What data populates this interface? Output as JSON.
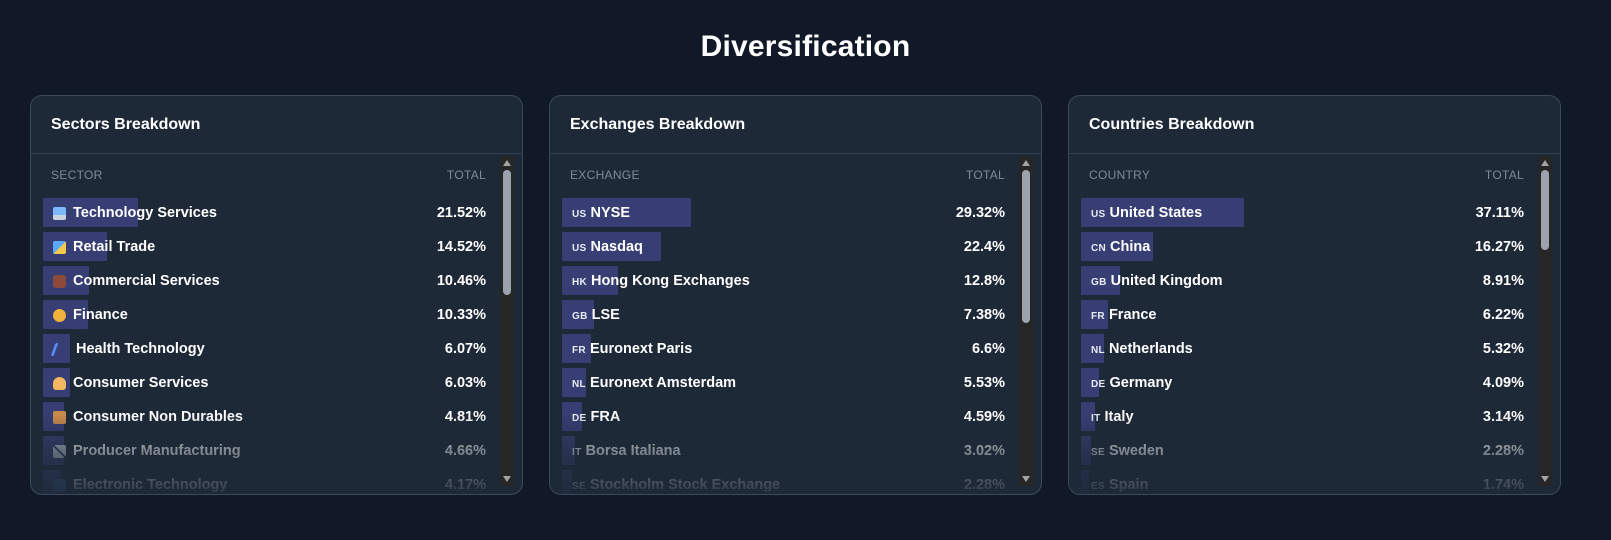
{
  "title": "Diversification",
  "colors": {
    "bar": "#363e73",
    "background": "#111827",
    "panel": "#1e2937"
  },
  "panels": [
    {
      "title": "Sectors Breakdown",
      "col_label": "SECTOR",
      "col_total": "TOTAL",
      "scroll_thumb": {
        "start": 0.0,
        "length": 0.41
      },
      "rows": [
        {
          "label": "Technology Services",
          "value": "21.52%",
          "pct": 21.52,
          "icon": "computer-icon"
        },
        {
          "label": "Retail Trade",
          "value": "14.52%",
          "pct": 14.52,
          "icon": "shopping-bags-icon"
        },
        {
          "label": "Commercial Services",
          "value": "10.46%",
          "pct": 10.46,
          "icon": "briefcase-icon"
        },
        {
          "label": "Finance",
          "value": "10.33%",
          "pct": 10.33,
          "icon": "money-bag-icon"
        },
        {
          "label": "Health Technology",
          "value": "6.07%",
          "pct": 6.07,
          "icon": "dna-icon"
        },
        {
          "label": "Consumer Services",
          "value": "6.03%",
          "pct": 6.03,
          "icon": "person-icon"
        },
        {
          "label": "Consumer Non Durables",
          "value": "4.81%",
          "pct": 4.81,
          "icon": "package-icon"
        },
        {
          "label": "Producer Manufacturing",
          "value": "4.66%",
          "pct": 4.66,
          "icon": "tools-icon"
        },
        {
          "label": "Electronic Technology",
          "value": "4.17%",
          "pct": 4.17,
          "icon": "chip-icon"
        }
      ]
    },
    {
      "title": "Exchanges Breakdown",
      "col_label": "EXCHANGE",
      "col_total": "TOTAL",
      "scroll_thumb": {
        "start": 0.0,
        "length": 0.5
      },
      "rows": [
        {
          "code": "US",
          "label": "NYSE",
          "value": "29.32%",
          "pct": 29.32
        },
        {
          "code": "US",
          "label": "Nasdaq",
          "value": "22.4%",
          "pct": 22.4
        },
        {
          "code": "HK",
          "label": "Hong Kong Exchanges",
          "value": "12.8%",
          "pct": 12.8
        },
        {
          "code": "GB",
          "label": "LSE",
          "value": "7.38%",
          "pct": 7.38
        },
        {
          "code": "FR",
          "label": "Euronext Paris",
          "value": "6.6%",
          "pct": 6.6
        },
        {
          "code": "NL",
          "label": "Euronext Amsterdam",
          "value": "5.53%",
          "pct": 5.53
        },
        {
          "code": "DE",
          "label": "FRA",
          "value": "4.59%",
          "pct": 4.59
        },
        {
          "code": "IT",
          "label": "Borsa Italiana",
          "value": "3.02%",
          "pct": 3.02
        },
        {
          "code": "SE",
          "label": "Stockholm Stock Exchange",
          "value": "2.28%",
          "pct": 2.28
        }
      ]
    },
    {
      "title": "Countries Breakdown",
      "col_label": "COUNTRY",
      "col_total": "TOTAL",
      "scroll_thumb": {
        "start": 0.0,
        "length": 0.26
      },
      "rows": [
        {
          "code": "US",
          "label": "United States",
          "value": "37.11%",
          "pct": 37.11
        },
        {
          "code": "CN",
          "label": "China",
          "value": "16.27%",
          "pct": 16.27
        },
        {
          "code": "GB",
          "label": "United Kingdom",
          "value": "8.91%",
          "pct": 8.91
        },
        {
          "code": "FR",
          "label": "France",
          "value": "6.22%",
          "pct": 6.22
        },
        {
          "code": "NL",
          "label": "Netherlands",
          "value": "5.32%",
          "pct": 5.32
        },
        {
          "code": "DE",
          "label": "Germany",
          "value": "4.09%",
          "pct": 4.09
        },
        {
          "code": "IT",
          "label": "Italy",
          "value": "3.14%",
          "pct": 3.14
        },
        {
          "code": "SE",
          "label": "Sweden",
          "value": "2.28%",
          "pct": 2.28
        },
        {
          "code": "ES",
          "label": "Spain",
          "value": "1.74%",
          "pct": 1.74
        }
      ]
    }
  ]
}
